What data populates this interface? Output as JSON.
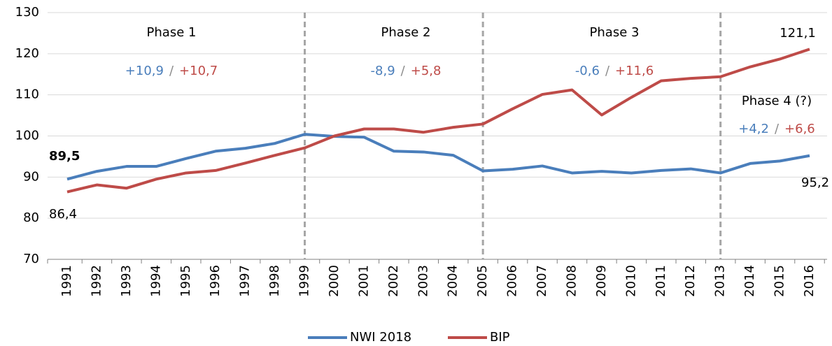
{
  "chart_data": {
    "type": "line",
    "categories": [
      "1991",
      "1992",
      "1993",
      "1994",
      "1995",
      "1996",
      "1997",
      "1998",
      "1999",
      "2000",
      "2001",
      "2002",
      "2003",
      "2004",
      "2005",
      "2006",
      "2007",
      "2008",
      "2009",
      "2010",
      "2011",
      "2012",
      "2013",
      "2014",
      "2015",
      "2016"
    ],
    "series": [
      {
        "name": "NWI 2018",
        "color": "#4a7ebb",
        "values": [
          89.5,
          91.4,
          92.6,
          92.6,
          94.5,
          96.3,
          97.0,
          98.2,
          100.4,
          99.9,
          99.7,
          96.3,
          96.1,
          95.3,
          91.5,
          91.9,
          92.7,
          91.0,
          91.4,
          91.0,
          91.6,
          92.0,
          91.0,
          93.3,
          93.9,
          95.2
        ],
        "value_labels": [
          "89,5",
          null,
          null,
          null,
          null,
          null,
          null,
          null,
          null,
          null,
          null,
          null,
          null,
          null,
          null,
          null,
          null,
          null,
          null,
          null,
          null,
          null,
          null,
          null,
          null,
          "95,2"
        ]
      },
      {
        "name": "BIP",
        "color": "#be4b48",
        "values": [
          86.4,
          88.1,
          87.3,
          89.5,
          91.0,
          91.6,
          93.4,
          95.3,
          97.1,
          100.0,
          101.7,
          101.7,
          100.9,
          102.1,
          102.9,
          106.6,
          110.1,
          111.2,
          105.1,
          109.4,
          113.4,
          114.0,
          114.4,
          116.8,
          118.7,
          121.1
        ],
        "value_labels": [
          "86,4",
          null,
          null,
          null,
          null,
          null,
          null,
          null,
          null,
          null,
          null,
          null,
          null,
          null,
          null,
          null,
          null,
          null,
          null,
          null,
          null,
          null,
          null,
          null,
          null,
          "121,1"
        ]
      }
    ],
    "ylim": [
      70,
      130
    ],
    "yticks": [
      70,
      80,
      90,
      100,
      110,
      120,
      130
    ],
    "grid": true,
    "phase_boundaries": [
      "1999",
      "2005",
      "2013"
    ],
    "annotation_separator": "/",
    "phases": [
      {
        "label": "Phase 1",
        "nwi": "+10,9",
        "bip": "+10,7"
      },
      {
        "label": "Phase 2",
        "nwi": "-8,9",
        "bip": "+5,8"
      },
      {
        "label": "Phase 3",
        "nwi": "-0,6",
        "bip": "+11,6"
      },
      {
        "label": "Phase 4 (?)",
        "nwi": "+4,2",
        "bip": "+6,6"
      }
    ],
    "legend": "bottom"
  }
}
